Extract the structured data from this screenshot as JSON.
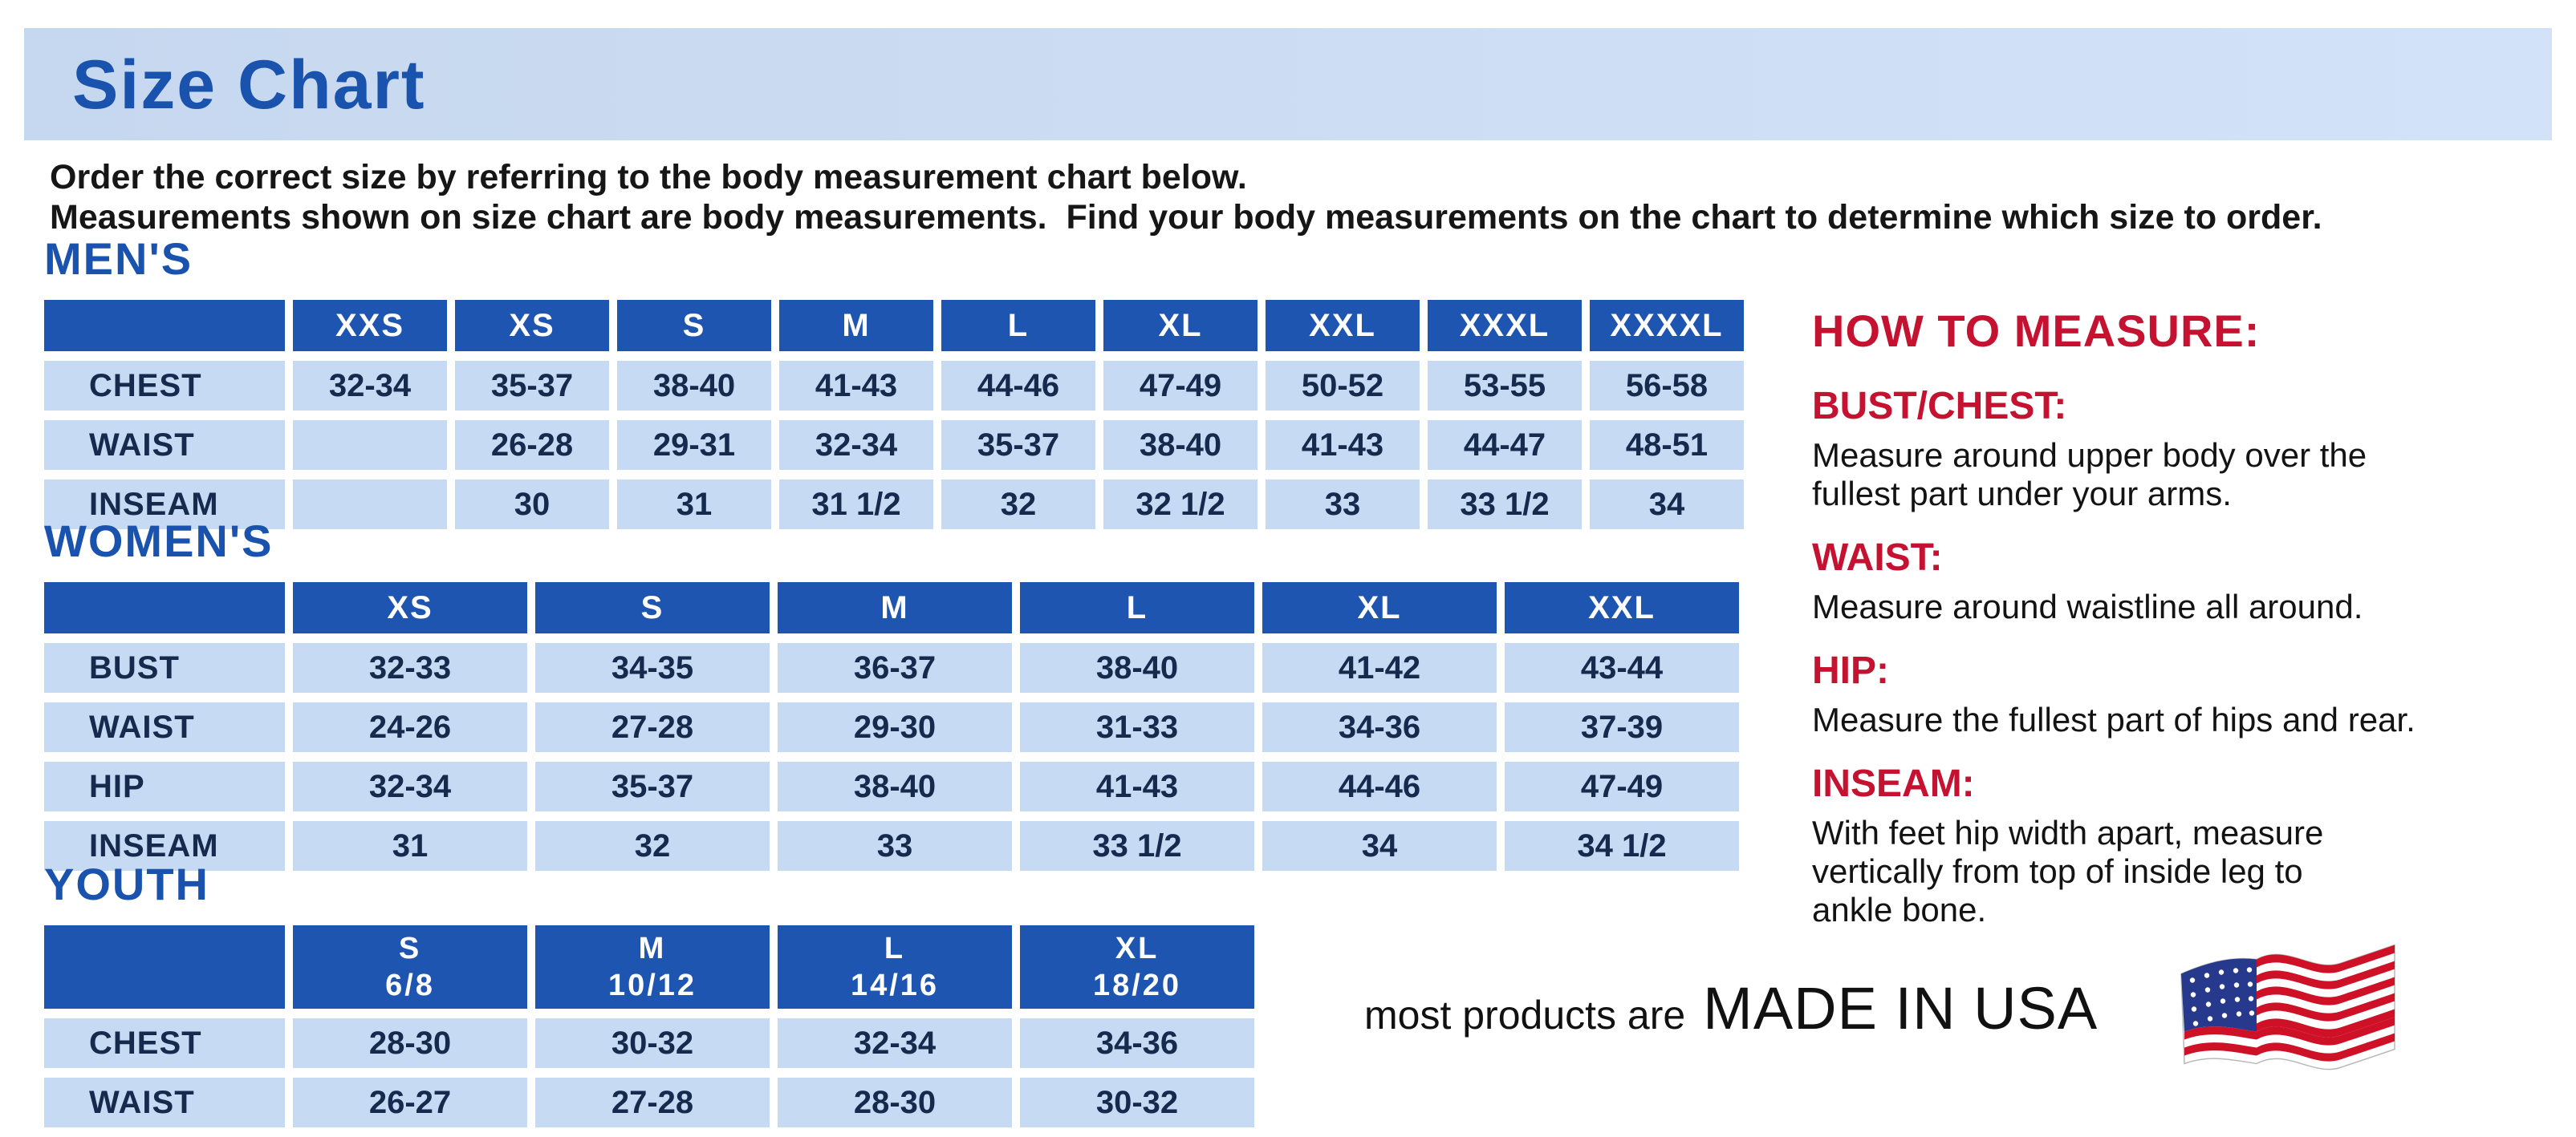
{
  "banner": {
    "title": "Size Chart"
  },
  "intro": {
    "text": "Order the correct size by referring to the body measurement chart below.\nMeasurements shown on size chart are body measurements.  Find your body measurements on the chart to determine which size to order."
  },
  "tables": [
    {
      "heading": "MEN'S",
      "columns": [
        "XXS",
        "XS",
        "S",
        "M",
        "L",
        "XL",
        "XXL",
        "XXXL",
        "XXXXL"
      ],
      "rows": [
        {
          "label": "CHEST",
          "values": [
            "32-34",
            "35-37",
            "38-40",
            "41-43",
            "44-46",
            "47-49",
            "50-52",
            "53-55",
            "56-58"
          ]
        },
        {
          "label": "WAIST",
          "values": [
            "",
            "26-28",
            "29-31",
            "32-34",
            "35-37",
            "38-40",
            "41-43",
            "44-47",
            "48-51"
          ]
        },
        {
          "label": "INSEAM",
          "values": [
            "",
            "30",
            "31",
            "31 1/2",
            "32",
            "32 1/2",
            "33",
            "33 1/2",
            "34"
          ]
        }
      ]
    },
    {
      "heading": "WOMEN'S",
      "columns": [
        "XS",
        "S",
        "M",
        "L",
        "XL",
        "XXL"
      ],
      "rows": [
        {
          "label": "BUST",
          "values": [
            "32-33",
            "34-35",
            "36-37",
            "38-40",
            "41-42",
            "43-44"
          ]
        },
        {
          "label": "WAIST",
          "values": [
            "24-26",
            "27-28",
            "29-30",
            "31-33",
            "34-36",
            "37-39"
          ]
        },
        {
          "label": "HIP",
          "values": [
            "32-34",
            "35-37",
            "38-40",
            "41-43",
            "44-46",
            "47-49"
          ]
        },
        {
          "label": "INSEAM",
          "values": [
            "31",
            "32",
            "33",
            "33 1/2",
            "34",
            "34 1/2"
          ]
        }
      ]
    },
    {
      "heading": "YOUTH",
      "columns": [
        "S\n6/8",
        "M\n10/12",
        "L\n14/16",
        "XL\n18/20"
      ],
      "rows": [
        {
          "label": "CHEST",
          "values": [
            "28-30",
            "30-32",
            "32-34",
            "34-36"
          ]
        },
        {
          "label": "WAIST",
          "values": [
            "26-27",
            "27-28",
            "28-30",
            "30-32"
          ]
        }
      ]
    }
  ],
  "measure": {
    "heading": "HOW TO MEASURE:",
    "items": [
      {
        "term": "BUST/CHEST:",
        "desc": "Measure around upper body over the\nfullest part under your arms."
      },
      {
        "term": "WAIST:",
        "desc": "Measure around waistline all around."
      },
      {
        "term": "HIP:",
        "desc": "Measure the fullest part of hips and rear."
      },
      {
        "term": "INSEAM:",
        "desc": "With feet hip width apart, measure\nvertically from top of inside leg to\nankle bone."
      }
    ]
  },
  "footer": {
    "prefix": "most products are",
    "emphasis": "MADE IN USA",
    "flag_icon": "usa-flag-icon"
  },
  "colors": {
    "accent_blue": "#1d55b0",
    "heading_blue": "#1a53ae",
    "cell_light_blue": "#c6daf3",
    "banner_light_blue": "#ccdcf2",
    "heading_red": "#c41230",
    "cell_text_navy": "#152a4d"
  }
}
